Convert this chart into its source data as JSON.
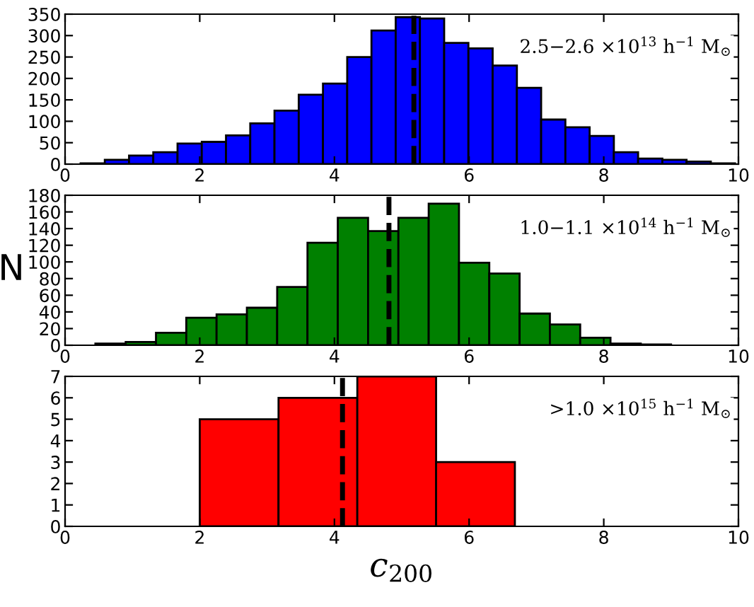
{
  "chart_data": [
    {
      "type": "histogram",
      "bins": [
        0.23,
        0.59,
        0.95,
        1.31,
        1.67,
        2.03,
        2.39,
        2.75,
        3.11,
        3.47,
        3.83,
        4.19,
        4.55,
        4.91,
        5.27,
        5.63,
        5.99,
        6.35,
        6.71,
        7.07,
        7.43,
        7.79,
        8.15,
        8.51,
        8.87,
        9.23,
        9.59,
        9.95
      ],
      "values": [
        2,
        10,
        20,
        28,
        48,
        52,
        67,
        95,
        125,
        162,
        188,
        250,
        312,
        343,
        340,
        283,
        270,
        230,
        178,
        104,
        86,
        66,
        28,
        13,
        10,
        6,
        2
      ],
      "color": "#0000ff",
      "xlim": [
        0,
        10
      ],
      "xticks": [
        0,
        2,
        4,
        6,
        8,
        10
      ],
      "ylim": [
        0,
        350
      ],
      "yticks": [
        0,
        50,
        100,
        150,
        200,
        250,
        300,
        350
      ],
      "annotations": [
        "2.5−2.6 ×10$^{13}$ h$^{−1}$ M$_{⊙}$"
      ],
      "ref_lines": [
        {
          "axis": "x",
          "value": 5.18,
          "label": null,
          "color": "#000000",
          "line_style": "dashed"
        }
      ],
      "grid": false
    },
    {
      "type": "histogram",
      "bins": [
        0.45,
        0.9,
        1.35,
        1.8,
        2.25,
        2.7,
        3.15,
        3.6,
        4.05,
        4.5,
        4.95,
        5.4,
        5.85,
        6.3,
        6.75,
        7.2,
        7.65,
        8.1,
        8.55,
        9.0
      ],
      "values": [
        2,
        4,
        15,
        33,
        37,
        45,
        70,
        123,
        153,
        137,
        153,
        170,
        99,
        86,
        38,
        25,
        9,
        2,
        1
      ],
      "color": "#008000",
      "xlim": [
        0,
        10
      ],
      "xticks": [
        0,
        2,
        4,
        6,
        8,
        10
      ],
      "ylim": [
        0,
        180
      ],
      "yticks": [
        0,
        20,
        40,
        60,
        80,
        100,
        120,
        140,
        160,
        180
      ],
      "ylabel": "N",
      "annotations": [
        "1.0−1.1 ×10$^{14}$ h$^{−1}$ M$_{⊙}$"
      ],
      "ref_lines": [
        {
          "axis": "x",
          "value": 4.81,
          "label": null,
          "color": "#000000",
          "line_style": "dashed"
        }
      ],
      "grid": false
    },
    {
      "type": "histogram",
      "bins": [
        2.0,
        3.17,
        4.34,
        5.51,
        6.68
      ],
      "values": [
        5,
        6,
        7,
        3
      ],
      "color": "#ff0000",
      "xlim": [
        0,
        10
      ],
      "xticks": [
        0,
        2,
        4,
        6,
        8,
        10
      ],
      "ylim": [
        0,
        7
      ],
      "yticks": [
        0,
        1,
        2,
        3,
        4,
        5,
        6,
        7
      ],
      "xlabel": "c$_{200}$",
      "annotations": [
        ">1.0 ×10$^{15}$ h$^{−1}$ M$_{⊙}$"
      ],
      "ref_lines": [
        {
          "axis": "x",
          "value": 4.12,
          "label": null,
          "color": "#000000",
          "line_style": "dashed"
        }
      ],
      "grid": false
    }
  ]
}
